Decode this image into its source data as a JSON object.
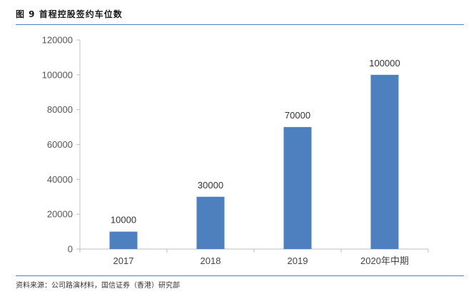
{
  "figure": {
    "title": "图 9   首程控股签约车位数",
    "source": "资料来源：公司路演材料，国信证券（香港）研究部"
  },
  "colors": {
    "bar": "#4e7fbf",
    "accent_rule": "#4a7fc1"
  },
  "chart_data": {
    "type": "bar",
    "categories": [
      "2017",
      "2018",
      "2019",
      "2020年中期"
    ],
    "values": [
      10000,
      30000,
      70000,
      100000
    ],
    "data_labels": [
      "10000",
      "30000",
      "70000",
      "100000"
    ],
    "yticks": [
      "0",
      "20000",
      "40000",
      "60000",
      "80000",
      "100000",
      "120000"
    ],
    "ylim": [
      0,
      120000
    ],
    "grid": false,
    "legend": "none"
  }
}
